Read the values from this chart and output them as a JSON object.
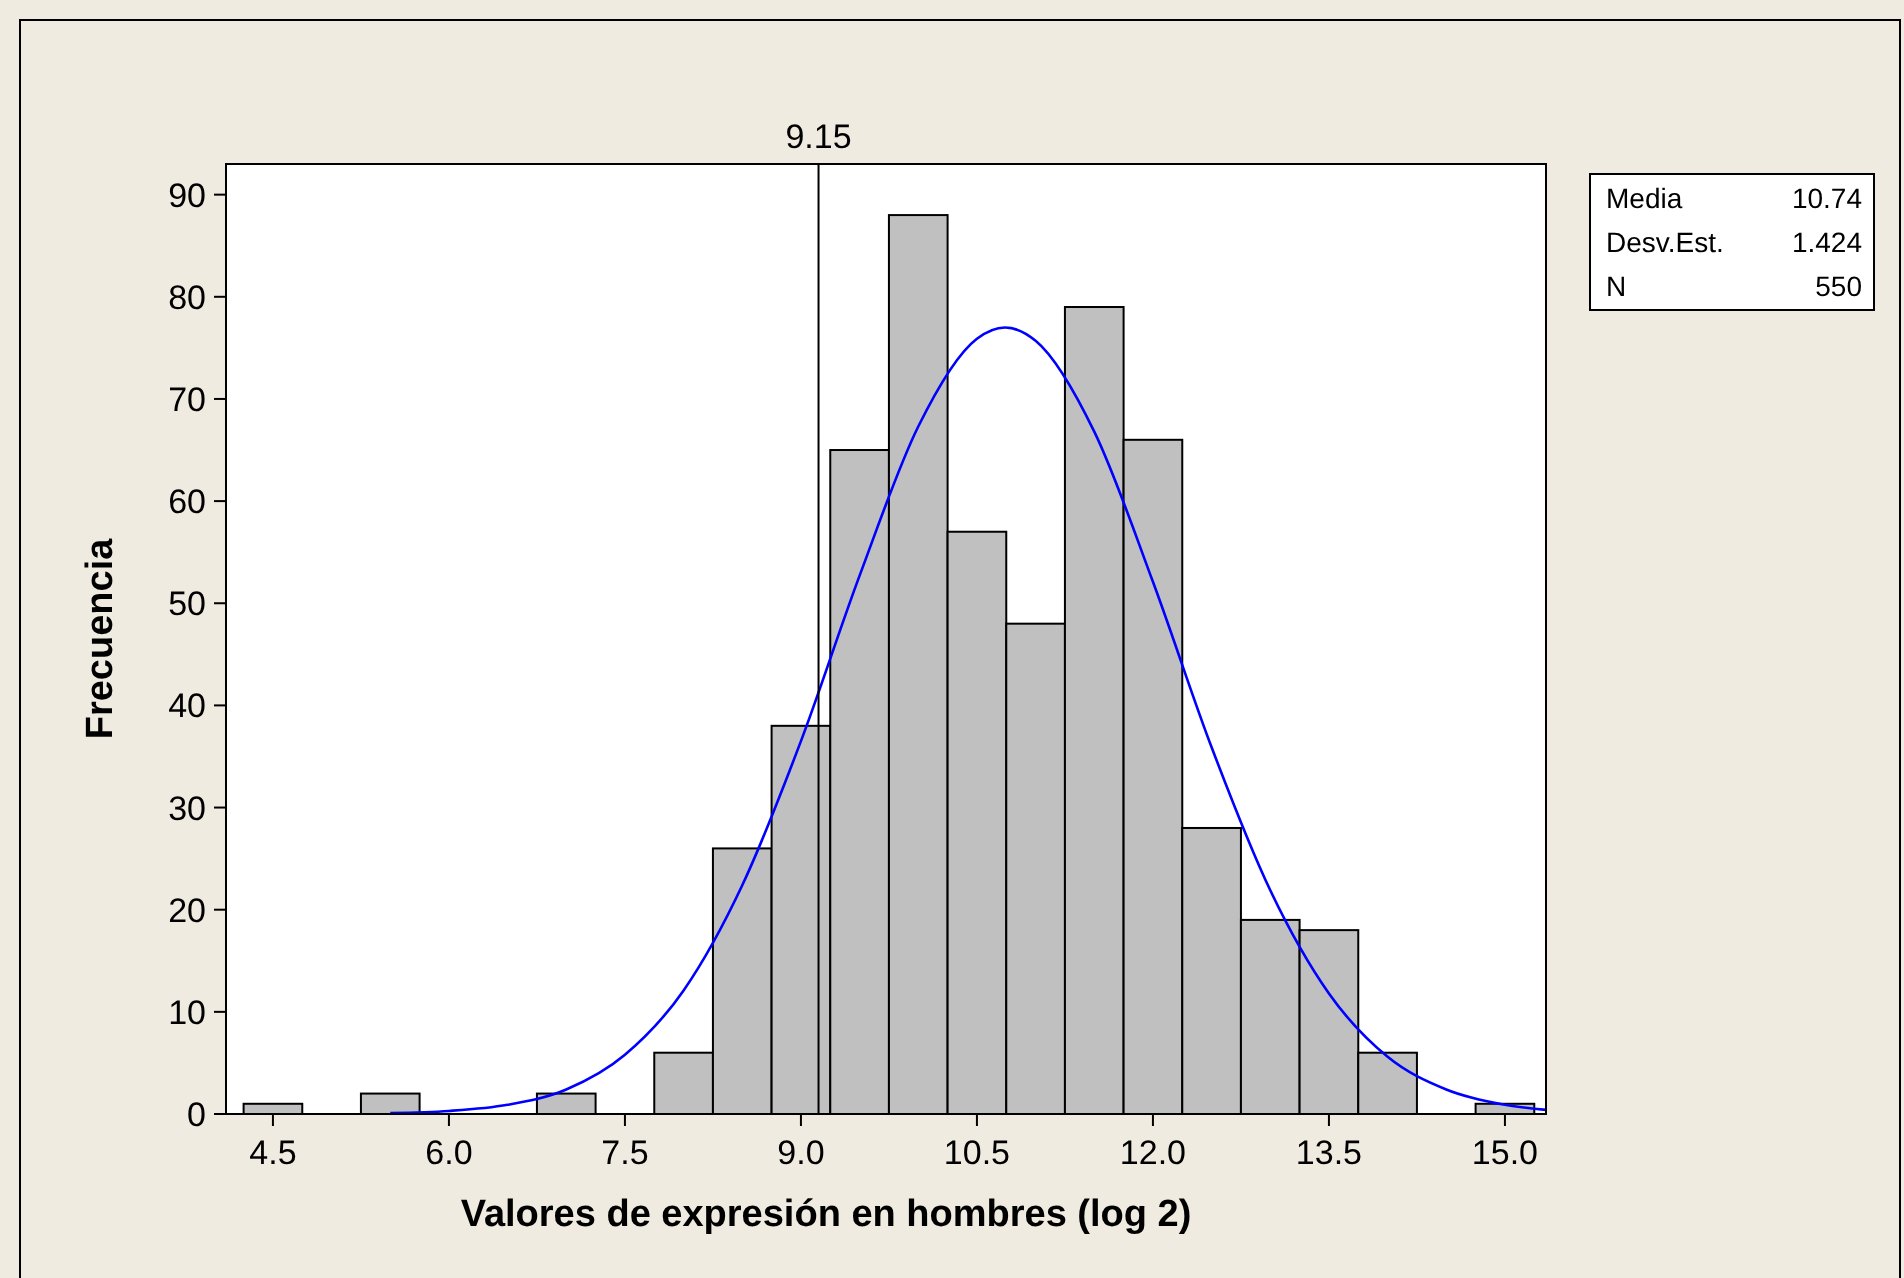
{
  "chart_data": {
    "type": "histogram",
    "xlabel": "Valores de expresión en hombres (log 2)",
    "ylabel": "Frecuencia",
    "bins": [
      4.25,
      4.75,
      5.25,
      5.75,
      6.25,
      6.75,
      7.25,
      7.75,
      8.25,
      8.75,
      9.25,
      9.75,
      10.25,
      10.75,
      11.25,
      11.75,
      12.25,
      12.75,
      13.25,
      13.75,
      14.25,
      14.75,
      15.25
    ],
    "values": [
      1,
      0,
      2,
      0,
      0,
      2,
      0,
      6,
      26,
      38,
      65,
      88,
      57,
      48,
      79,
      66,
      28,
      19,
      18,
      6,
      0,
      1
    ],
    "color": "#c0c0c0",
    "series": [
      {
        "type": "line",
        "color": "#0000ff",
        "x": [
          5.5,
          6.0,
          6.5,
          7.0,
          7.5,
          8.0,
          8.5,
          9.0,
          9.5,
          10.0,
          10.5,
          10.74,
          11.0,
          11.5,
          12.0,
          12.5,
          13.0,
          13.5,
          14.0,
          14.5,
          15.0,
          15.35
        ],
        "values": [
          0.1,
          0.3,
          0.9,
          2.4,
          5.8,
          12.1,
          22.4,
          36.5,
          52.7,
          67.3,
          75.9,
          77.0,
          75.7,
          66.8,
          52.1,
          35.9,
          21.9,
          11.8,
          5.6,
          2.4,
          0.9,
          0.4
        ]
      }
    ],
    "xlim": [
      4.1,
      15.35
    ],
    "ylim": [
      0,
      93
    ],
    "xticks": [
      4.5,
      {
        "value": 6,
        "label": "6.0"
      },
      7.5,
      {
        "value": 9,
        "label": "9.0"
      },
      10.5,
      {
        "value": 12,
        "label": "12.0"
      },
      13.5,
      {
        "value": 15,
        "label": "15.0"
      }
    ],
    "yticks": [
      0,
      10,
      20,
      30,
      40,
      50,
      60,
      70,
      80,
      90
    ],
    "ref_lines": [
      {
        "axis": "x",
        "value": 9.15,
        "label": "9.15",
        "color": "#000000"
      }
    ],
    "annotations": [
      "Media",
      "10.74",
      "Desv.Est.",
      "1.424",
      "N",
      "550"
    ],
    "grid": false
  }
}
